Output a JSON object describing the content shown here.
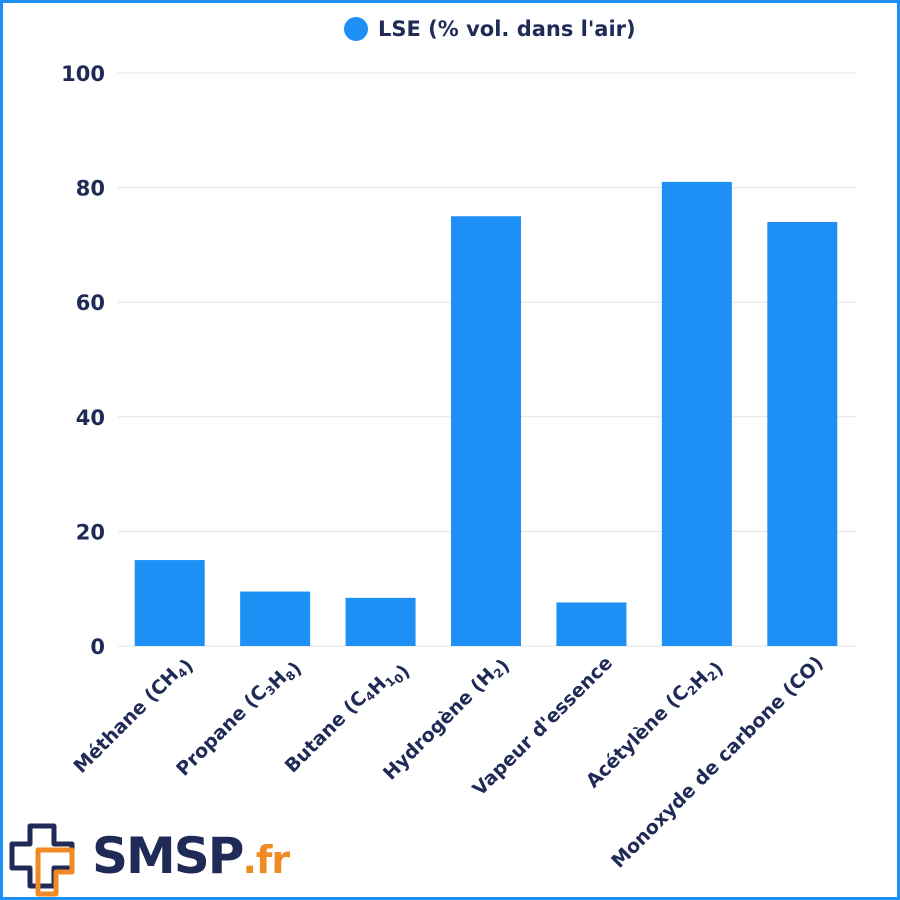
{
  "colors": {
    "bar": "#1e90f5",
    "text": "#1f2a56",
    "grid": "#e3e3e3",
    "frame": "#1e90f5",
    "logo_accent": "#f08a24"
  },
  "legend": {
    "label": "LSE (% vol. dans l'air)",
    "marker": "circle-dot-icon"
  },
  "logo": {
    "name": "SMSP",
    "suffix": ".fr",
    "icon": "medical-cross-icon"
  },
  "chart_data": {
    "type": "bar",
    "title": "",
    "xlabel": "",
    "ylabel": "",
    "ylim": [
      0,
      100
    ],
    "yticks": [
      0,
      20,
      40,
      60,
      80,
      100
    ],
    "grid": true,
    "legend_position": "top-center",
    "categories": [
      "Méthane (CH₄)",
      "Propane (C₃H₈)",
      "Butane (C₄H₁₀)",
      "Hydrogène (H₂)",
      "Vapeur d'essence",
      "Acétylène (C₂H₂)",
      "Monoxyde de carbone (CO)"
    ],
    "series": [
      {
        "name": "LSE (% vol. dans l'air)",
        "values": [
          15,
          9.5,
          8.4,
          75,
          7.6,
          81,
          74
        ]
      }
    ]
  }
}
